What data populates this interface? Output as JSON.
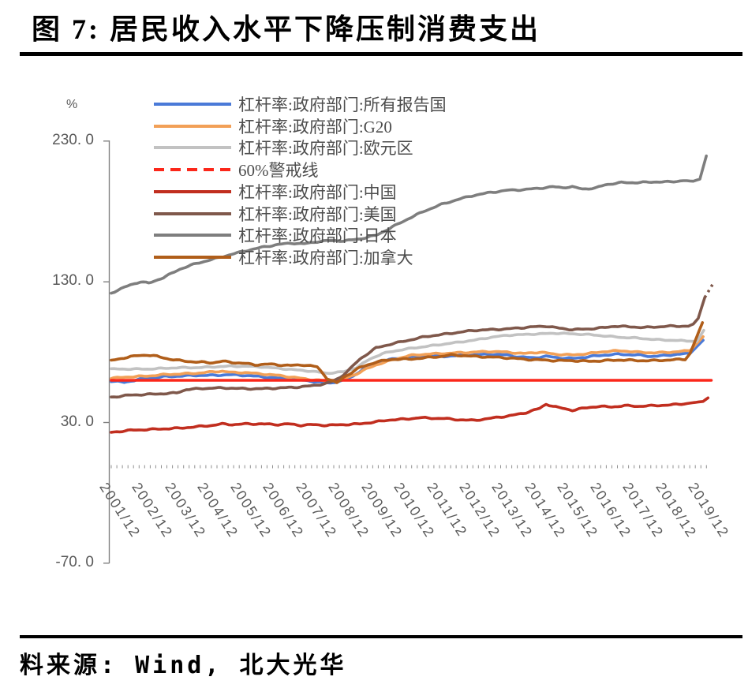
{
  "title": "图 7: 居民收入水平下降压制消费支出",
  "source": "料来源: Wind, 北大光华",
  "y_axis": {
    "unit": "%",
    "tick_labels": [
      "230. 0",
      "130. 0",
      "30. 0",
      "-70. 0"
    ],
    "tick_values": [
      230,
      130,
      30,
      -70
    ]
  },
  "x_axis": {
    "tick_labels": [
      "2001/12",
      "2002/12",
      "2003/12",
      "2004/12",
      "2005/12",
      "2006/12",
      "2007/12",
      "2008/12",
      "2009/12",
      "2010/12",
      "2011/12",
      "2012/12",
      "2013/12",
      "2014/12",
      "2015/12",
      "2016/12",
      "2017/12",
      "2018/12",
      "2019/12"
    ]
  },
  "chart_data": {
    "type": "line",
    "x_unit": "years since 2001/12",
    "ylim": [
      -70,
      230
    ],
    "y_unit": "%",
    "series": [
      {
        "name": "杠杆率:政府部门:所有报告国",
        "color": "#4A7AD8",
        "style": "solid",
        "points": [
          [
            -0.1,
            59.5
          ],
          [
            0.3,
            58.5
          ],
          [
            0.7,
            60.5
          ],
          [
            1,
            61.5
          ],
          [
            1.5,
            62.5
          ],
          [
            2,
            63
          ],
          [
            2.5,
            63.5
          ],
          [
            3,
            63.5
          ],
          [
            3.5,
            64
          ],
          [
            4,
            63.5
          ],
          [
            4.5,
            62.5
          ],
          [
            5,
            61.5
          ],
          [
            5.5,
            60.5
          ],
          [
            6,
            59.5
          ],
          [
            6.3,
            58.5
          ],
          [
            6.6,
            58
          ],
          [
            7,
            60
          ],
          [
            7.3,
            63
          ],
          [
            7.6,
            68
          ],
          [
            8,
            72
          ],
          [
            8.3,
            74
          ],
          [
            8.6,
            75.5
          ],
          [
            9,
            76.5
          ],
          [
            9.5,
            77
          ],
          [
            10,
            77
          ],
          [
            10.5,
            77.5
          ],
          [
            11,
            78
          ],
          [
            11.5,
            78.5
          ],
          [
            12,
            78
          ],
          [
            12.4,
            76.5
          ],
          [
            12.8,
            76
          ],
          [
            13.2,
            77
          ],
          [
            13.6,
            76
          ],
          [
            14,
            75.5
          ],
          [
            14.4,
            76.5
          ],
          [
            15,
            78
          ],
          [
            15.4,
            78.5
          ],
          [
            16,
            78
          ],
          [
            16.4,
            77
          ],
          [
            16.8,
            77.5
          ],
          [
            17.2,
            78.5
          ],
          [
            17.6,
            79
          ],
          [
            18,
            88.5
          ]
        ]
      },
      {
        "name": "杠杆率:政府部门:G20",
        "color": "#F2A057",
        "style": "solid",
        "points": [
          [
            -0.1,
            61.5
          ],
          [
            0.5,
            62.5
          ],
          [
            1,
            63
          ],
          [
            1.5,
            64
          ],
          [
            2,
            64.5
          ],
          [
            2.5,
            65
          ],
          [
            3,
            66
          ],
          [
            3.3,
            66.5
          ],
          [
            3.6,
            65.5
          ],
          [
            4,
            65.5
          ],
          [
            4.5,
            64.5
          ],
          [
            5,
            63.5
          ],
          [
            5.5,
            62
          ],
          [
            6,
            60.5
          ],
          [
            6.5,
            59.5
          ],
          [
            7,
            61
          ],
          [
            7.4,
            64.5
          ],
          [
            7.7,
            68
          ],
          [
            8,
            71
          ],
          [
            8.5,
            74.5
          ],
          [
            9,
            77.5
          ],
          [
            9.5,
            78.5
          ],
          [
            10,
            79
          ],
          [
            10.5,
            79.5
          ],
          [
            11,
            80
          ],
          [
            11.5,
            80.5
          ],
          [
            12,
            80
          ],
          [
            12.5,
            79
          ],
          [
            13,
            80
          ],
          [
            13.5,
            78.5
          ],
          [
            14,
            78
          ],
          [
            14.5,
            79
          ],
          [
            15,
            80.5
          ],
          [
            15.5,
            81
          ],
          [
            16,
            80
          ],
          [
            16.5,
            79.5
          ],
          [
            17,
            80
          ],
          [
            17.6,
            81
          ],
          [
            18,
            91
          ]
        ]
      },
      {
        "name": "杠杆率:政府部门:欧元区",
        "color": "#C2C2C2",
        "style": "solid",
        "points": [
          [
            -0.1,
            68
          ],
          [
            0.5,
            68
          ],
          [
            1,
            68
          ],
          [
            1.5,
            68.5
          ],
          [
            2,
            69
          ],
          [
            2.5,
            69
          ],
          [
            3,
            69.5
          ],
          [
            3.5,
            70
          ],
          [
            4,
            70
          ],
          [
            4.5,
            69.5
          ],
          [
            5,
            68.5
          ],
          [
            5.5,
            67.5
          ],
          [
            6,
            66.5
          ],
          [
            6.5,
            65
          ],
          [
            7,
            66
          ],
          [
            7.4,
            69
          ],
          [
            7.8,
            75
          ],
          [
            8.2,
            79
          ],
          [
            8.6,
            81
          ],
          [
            9,
            82.5
          ],
          [
            9.5,
            84
          ],
          [
            10,
            85.5
          ],
          [
            10.5,
            87
          ],
          [
            11,
            88.5
          ],
          [
            11.5,
            90.5
          ],
          [
            12,
            92
          ],
          [
            12.5,
            92.5
          ],
          [
            13,
            93
          ],
          [
            13.5,
            93.5
          ],
          [
            14,
            93
          ],
          [
            14.5,
            92.5
          ],
          [
            15,
            91.5
          ],
          [
            15.5,
            90.5
          ],
          [
            16,
            90
          ],
          [
            16.5,
            89
          ],
          [
            17,
            88.5
          ],
          [
            17.5,
            88
          ],
          [
            17.8,
            87.5
          ],
          [
            18.02,
            95.5
          ]
        ]
      },
      {
        "name": "60%警戒线",
        "color": "#FB271A",
        "style": "solid",
        "legend_style": "dashed",
        "points": [
          [
            -0.1,
            60
          ],
          [
            18.25,
            60
          ]
        ]
      },
      {
        "name": "杠杆率:政府部门:中国",
        "color": "#C12E1F",
        "style": "solid",
        "points": [
          [
            -0.1,
            23
          ],
          [
            0.5,
            24.5
          ],
          [
            1,
            25
          ],
          [
            1.5,
            25.5
          ],
          [
            2,
            26
          ],
          [
            2.5,
            27
          ],
          [
            3,
            28
          ],
          [
            3.3,
            29
          ],
          [
            3.6,
            28.5
          ],
          [
            4,
            29
          ],
          [
            4.5,
            29
          ],
          [
            5,
            28.5
          ],
          [
            5.3,
            29
          ],
          [
            5.7,
            28
          ],
          [
            6,
            28.5
          ],
          [
            6.5,
            28
          ],
          [
            7,
            28.5
          ],
          [
            7.5,
            29
          ],
          [
            8,
            30.5
          ],
          [
            8.5,
            32
          ],
          [
            9,
            32.5
          ],
          [
            9.3,
            33.5
          ],
          [
            9.7,
            33
          ],
          [
            10,
            33
          ],
          [
            10.5,
            32
          ],
          [
            11,
            31.5
          ],
          [
            11.5,
            33
          ],
          [
            12,
            34.5
          ],
          [
            12.5,
            36.5
          ],
          [
            13,
            40
          ],
          [
            13.2,
            43
          ],
          [
            13.6,
            40.5
          ],
          [
            14,
            38.7
          ],
          [
            14.3,
            40
          ],
          [
            14.8,
            41.5
          ],
          [
            15.2,
            41
          ],
          [
            15.6,
            42
          ],
          [
            16,
            41.5
          ],
          [
            16.5,
            42
          ],
          [
            17,
            42.5
          ],
          [
            17.5,
            43.5
          ],
          [
            18,
            45
          ],
          [
            18.15,
            47.5
          ]
        ]
      },
      {
        "name": "杠杆率:政府部门:美国",
        "color": "#7F584B",
        "style": "solid",
        "points": [
          [
            -0.1,
            48
          ],
          [
            0.5,
            49.5
          ],
          [
            1,
            50
          ],
          [
            1.5,
            50.5
          ],
          [
            1.9,
            51
          ],
          [
            2.2,
            53.5
          ],
          [
            2.6,
            54
          ],
          [
            3,
            54.5
          ],
          [
            3.5,
            54.5
          ],
          [
            4,
            54
          ],
          [
            4.5,
            54
          ],
          [
            5,
            54.5
          ],
          [
            5.5,
            55
          ],
          [
            6,
            56
          ],
          [
            6.3,
            57
          ],
          [
            6.6,
            58.5
          ],
          [
            6.9,
            62
          ],
          [
            7.2,
            68
          ],
          [
            7.5,
            75
          ],
          [
            8,
            83
          ],
          [
            8.5,
            86
          ],
          [
            9,
            88.5
          ],
          [
            9.5,
            91
          ],
          [
            10,
            92.5
          ],
          [
            10.5,
            94
          ],
          [
            11,
            95.5
          ],
          [
            11.5,
            96
          ],
          [
            12,
            96.5
          ],
          [
            12.8,
            98
          ],
          [
            13.2,
            98.5
          ],
          [
            13.6,
            97
          ],
          [
            14,
            96
          ],
          [
            14.5,
            96.5
          ],
          [
            15,
            97.5
          ],
          [
            15.3,
            98.5
          ],
          [
            15.8,
            98
          ],
          [
            16.2,
            97.5
          ],
          [
            16.6,
            98
          ],
          [
            17,
            98.5
          ],
          [
            17.55,
            98.5
          ],
          [
            17.7,
            100
          ],
          [
            17.85,
            104
          ],
          [
            18.05,
            118.8
          ]
        ],
        "dash_extension": [
          [
            18.05,
            118.8
          ],
          [
            18.3,
            128.5
          ]
        ]
      },
      {
        "name": "杠杆率:政府部门:日本",
        "color": "#7E7E7E",
        "style": "solid",
        "points": [
          [
            -0.1,
            122
          ],
          [
            0.2,
            125
          ],
          [
            0.5,
            128
          ],
          [
            0.8,
            130
          ],
          [
            1.05,
            129
          ],
          [
            1.5,
            133
          ],
          [
            2,
            139
          ],
          [
            2.5,
            143
          ],
          [
            3,
            146
          ],
          [
            3.5,
            149
          ],
          [
            4,
            152
          ],
          [
            4.5,
            154.5
          ],
          [
            5,
            156.5
          ],
          [
            5.4,
            157.5
          ],
          [
            5.8,
            157
          ],
          [
            6.2,
            158.5
          ],
          [
            6.6,
            159.5
          ],
          [
            7,
            159
          ],
          [
            7.5,
            160.5
          ],
          [
            8,
            163
          ],
          [
            8.5,
            169
          ],
          [
            9,
            175
          ],
          [
            9.5,
            180.5
          ],
          [
            10,
            185
          ],
          [
            10.5,
            188.5
          ],
          [
            11,
            191.5
          ],
          [
            11.5,
            193.5
          ],
          [
            12,
            195
          ],
          [
            12.5,
            195.5
          ],
          [
            13,
            196.5
          ],
          [
            13.4,
            197.5
          ],
          [
            13.7,
            197
          ],
          [
            14,
            197.5
          ],
          [
            14.3,
            196
          ],
          [
            14.7,
            196.5
          ],
          [
            15,
            199
          ],
          [
            15.5,
            200.5
          ],
          [
            16,
            200.5
          ],
          [
            16.5,
            201
          ],
          [
            17,
            201
          ],
          [
            17.4,
            202
          ],
          [
            17.7,
            201.5
          ],
          [
            17.9,
            203
          ],
          [
            18.1,
            219.5
          ]
        ]
      },
      {
        "name": "杠杆率:政府部门:加拿大",
        "color": "#B05E1A",
        "style": "solid",
        "points": [
          [
            -0.1,
            74
          ],
          [
            0.3,
            76
          ],
          [
            0.7,
            77.5
          ],
          [
            1,
            78
          ],
          [
            1.3,
            77
          ],
          [
            1.7,
            75
          ],
          [
            2,
            74
          ],
          [
            2.5,
            73
          ],
          [
            3,
            72.5
          ],
          [
            3.3,
            73.5
          ],
          [
            3.7,
            72.5
          ],
          [
            4,
            72
          ],
          [
            4.3,
            71
          ],
          [
            4.7,
            71.5
          ],
          [
            5,
            71
          ],
          [
            5.4,
            70.5
          ],
          [
            5.8,
            71
          ],
          [
            6.2,
            69.5
          ],
          [
            6.5,
            61.5
          ],
          [
            6.8,
            58
          ],
          [
            7,
            62
          ],
          [
            7.5,
            69
          ],
          [
            8,
            73
          ],
          [
            8.5,
            75
          ],
          [
            9,
            75
          ],
          [
            9.5,
            76
          ],
          [
            10,
            77
          ],
          [
            10.3,
            78
          ],
          [
            10.7,
            77.5
          ],
          [
            11,
            77
          ],
          [
            11.5,
            76.5
          ],
          [
            12,
            76
          ],
          [
            12.5,
            75
          ],
          [
            13,
            74.5
          ],
          [
            13.5,
            74
          ],
          [
            14,
            74
          ],
          [
            14.5,
            73.5
          ],
          [
            15,
            74
          ],
          [
            15.5,
            74.5
          ],
          [
            16,
            74
          ],
          [
            16.5,
            74
          ],
          [
            17,
            74.5
          ],
          [
            17.45,
            75
          ],
          [
            17.6,
            79
          ],
          [
            17.98,
            101
          ]
        ]
      }
    ]
  }
}
